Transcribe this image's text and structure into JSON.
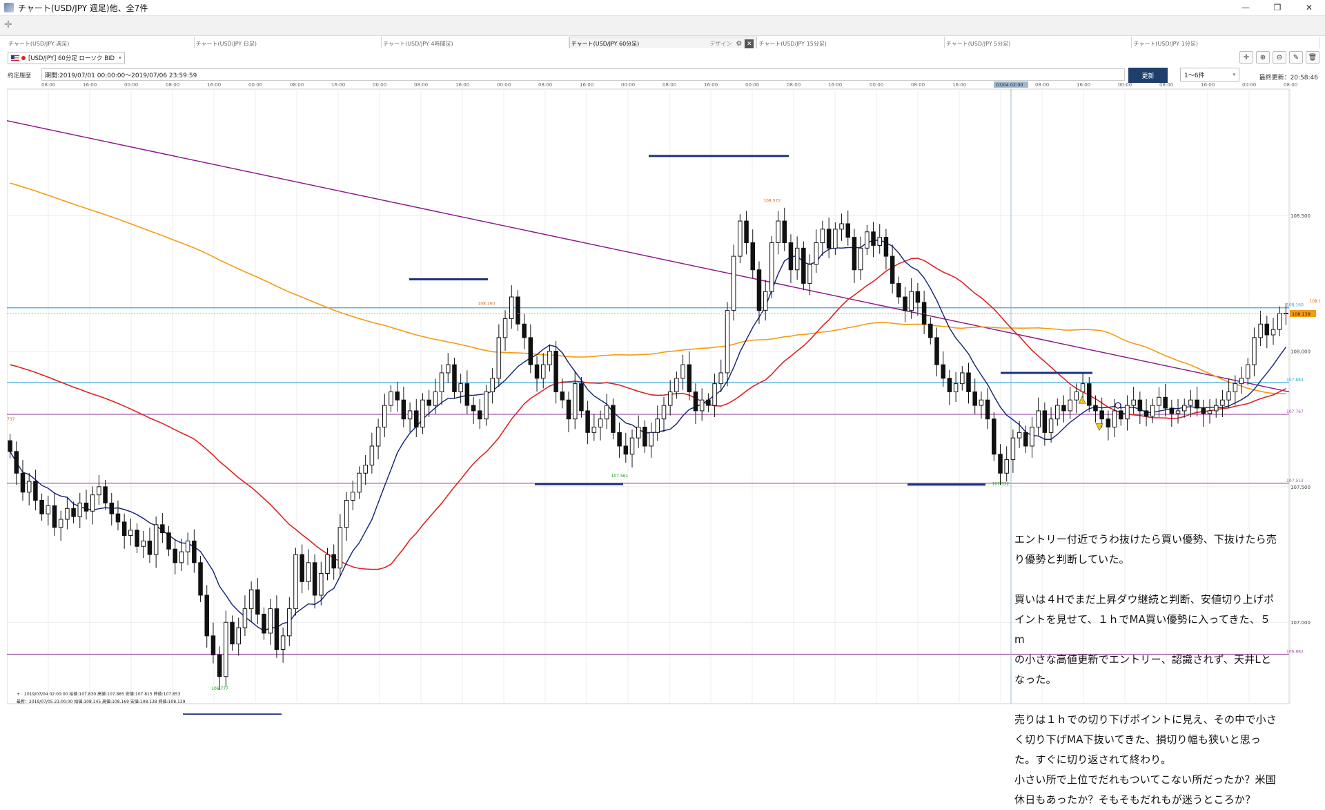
{
  "window": {
    "title": "チャート(USD/JPY 週足)他、全7件",
    "minimize": "—",
    "restore": "❐",
    "close": "✕"
  },
  "tabs": [
    {
      "label": "チャート(USD/JPY 週足)",
      "active": false
    },
    {
      "label": "チャート(USD/JPY 日足)",
      "active": false
    },
    {
      "label": "チャート(USD/JPY 4時間足)",
      "active": false
    },
    {
      "label": "チャート(USD/JPY 60分足)",
      "active": true,
      "design": "デザイン"
    },
    {
      "label": "チャート(USD/JPY 15分足)",
      "active": false
    },
    {
      "label": "チャート(USD/JPY 5分足)",
      "active": false
    },
    {
      "label": "チャート(USD/JPY 1分足)",
      "active": false
    }
  ],
  "symbol": {
    "label": "[USD/JPY] 60分足 ローソク BID",
    "caret": "▾"
  },
  "period": {
    "label": "約定履歴",
    "text": "期間:2019/07/01 00:00:00～2019/07/06 23:59:59"
  },
  "update_button": "更新",
  "range_select": {
    "value": "1～6件",
    "caret": "▾"
  },
  "last_update": "最終更新：20:58:46",
  "icons": {
    "settings": "gear-icon",
    "crosshair": "plus-icon",
    "zoom_in": "zoom-in-icon",
    "zoom_out": "zoom-out-icon",
    "pen": "pen-icon",
    "trash": "trash-icon"
  },
  "chart_data": {
    "type": "candlestick",
    "interval": "60分足",
    "time_labels": [
      "08:00",
      "16:00",
      "00:00",
      "08:00",
      "16:00",
      "00:00",
      "08:00",
      "16:00",
      "00:00",
      "08:00",
      "16:00",
      "00:00",
      "08:00",
      "16:00",
      "00:00",
      "08:00",
      "16:00",
      "00:00",
      "08:00",
      "16:00",
      "00:00",
      "08:00",
      "16:00",
      "00:00",
      "08:00",
      "16:00",
      "00:00",
      "08:00",
      "16:00",
      "00:00",
      "08:00",
      "16:00"
    ],
    "cursor_time": "07/04 02:00",
    "y_ticks": [
      "108.500",
      "108.000",
      "107.500",
      "107.000"
    ],
    "ylim": [
      106.7,
      108.88
    ],
    "horizontal_lines": [
      {
        "label": "108.160",
        "value": 108.16,
        "color": "#3aa7d8"
      },
      {
        "label": "107.884",
        "value": 107.884,
        "color": "#3aa7d8"
      },
      {
        "label": "107.767",
        "value": 107.767,
        "color": "#a05aa8"
      },
      {
        "label": "107.513",
        "value": 107.513,
        "color": "#a05aa8"
      },
      {
        "label": "106.882",
        "value": 106.882,
        "color": "#a05aa8"
      }
    ],
    "current_price": {
      "label": "108.139",
      "value": 108.139
    },
    "left_edge_label": "737",
    "annotations": [
      {
        "text": "108.572",
        "x": 120,
        "y": 108.54
      },
      {
        "text": "108.160",
        "x": 75,
        "y": 108.16
      },
      {
        "text": "107.561",
        "x": 96,
        "y": 107.561
      },
      {
        "text": "106.777",
        "x": 33,
        "y": 106.777
      },
      {
        "text": "107.532",
        "x": 156,
        "y": 107.532
      },
      {
        "text": "108.169",
        "x": 206,
        "y": 108.169
      }
    ],
    "series": [
      {
        "name": "ohlc",
        "close": [
          107.63,
          107.55,
          107.48,
          107.52,
          107.45,
          107.4,
          107.43,
          107.35,
          107.38,
          107.42,
          107.39,
          107.44,
          107.41,
          107.47,
          107.5,
          107.44,
          107.4,
          107.37,
          107.32,
          107.34,
          107.28,
          107.3,
          107.25,
          107.36,
          107.33,
          107.27,
          107.22,
          107.26,
          107.3,
          107.22,
          107.1,
          106.95,
          106.88,
          106.8,
          107.0,
          106.92,
          106.98,
          107.05,
          107.12,
          107.03,
          106.96,
          107.05,
          106.9,
          106.95,
          107.05,
          107.25,
          107.15,
          107.22,
          107.1,
          107.18,
          107.25,
          107.2,
          107.35,
          107.45,
          107.48,
          107.55,
          107.58,
          107.65,
          107.72,
          107.8,
          107.85,
          107.82,
          107.75,
          107.78,
          107.72,
          107.82,
          107.8,
          107.85,
          107.92,
          107.95,
          107.85,
          107.88,
          107.8,
          107.78,
          107.75,
          107.85,
          107.9,
          108.05,
          108.12,
          108.2,
          108.1,
          108.05,
          107.95,
          107.9,
          107.95,
          108.0,
          107.85,
          107.82,
          107.75,
          107.88,
          107.78,
          107.7,
          107.72,
          107.75,
          107.8,
          107.7,
          107.65,
          107.62,
          107.68,
          107.72,
          107.65,
          107.7,
          107.75,
          107.8,
          107.85,
          107.9,
          107.95,
          107.85,
          107.78,
          107.82,
          107.8,
          107.88,
          107.92,
          108.15,
          108.35,
          108.48,
          108.4,
          108.3,
          108.15,
          108.22,
          108.4,
          108.48,
          108.4,
          108.3,
          108.38,
          108.25,
          108.32,
          108.4,
          108.45,
          108.38,
          108.45,
          108.47,
          108.42,
          108.3,
          108.38,
          108.44,
          108.39,
          108.42,
          108.35,
          108.25,
          108.2,
          108.15,
          108.22,
          108.18,
          108.1,
          108.05,
          107.95,
          107.9,
          107.85,
          107.88,
          107.92,
          107.85,
          107.8,
          107.82,
          107.75,
          107.62,
          107.55,
          107.6,
          107.68,
          107.7,
          107.65,
          107.72,
          107.78,
          107.7,
          107.75,
          107.8,
          107.78,
          107.82,
          107.85,
          107.88,
          107.8,
          107.78,
          107.75,
          107.72,
          107.78,
          107.75,
          107.8,
          107.82,
          107.78,
          107.76,
          107.8,
          107.83,
          107.79,
          107.77,
          107.78,
          107.8,
          107.82,
          107.79,
          107.77,
          107.78,
          107.8,
          107.82,
          107.85,
          107.88,
          107.9,
          107.95,
          108.05,
          108.1,
          108.06,
          108.08,
          108.14,
          108.139
        ]
      }
    ],
    "indicators": [
      {
        "name": "ma_short",
        "color": "#1b2a7a"
      },
      {
        "name": "ma_mid",
        "color": "#e0211f"
      },
      {
        "name": "ma_long",
        "color": "#f59a12"
      },
      {
        "name": "trendline",
        "color": "#8c1c8c"
      }
    ],
    "status_lines": [
      "+：2019/07/04 02:00:00  始値:107.830  高値:107.885  安値:107.815  終値:107.853",
      "最新：2019/07/05 21:00:00  始値:108.145  高値:108.169  安値:108.138  終値:108.139"
    ]
  },
  "note": {
    "lines": [
      "エントリー付近でうわ抜けたら買い優勢、下抜けたら売",
      "り優勢と判断していた。",
      "",
      "買いは４Hでまだ上昇ダウ継続と判断、安値切り上げポ",
      "イントを見せて、１ｈでMA買い優勢に入ってきた、５m",
      "の小さな高値更新でエントリー、認識されず、天井Lと",
      "なった。",
      "",
      "売りは１ｈでの切り下げポイントに見え、その中で小さ",
      "く切り下げMA下抜いてきた、損切り幅も狭いと思っ",
      "た。すぐに切り返されて終わり。",
      "小さい所で上位でだれもついてこない所だったか？米国",
      "休日もあったか？そもそもだれもが迷うところか？"
    ]
  }
}
